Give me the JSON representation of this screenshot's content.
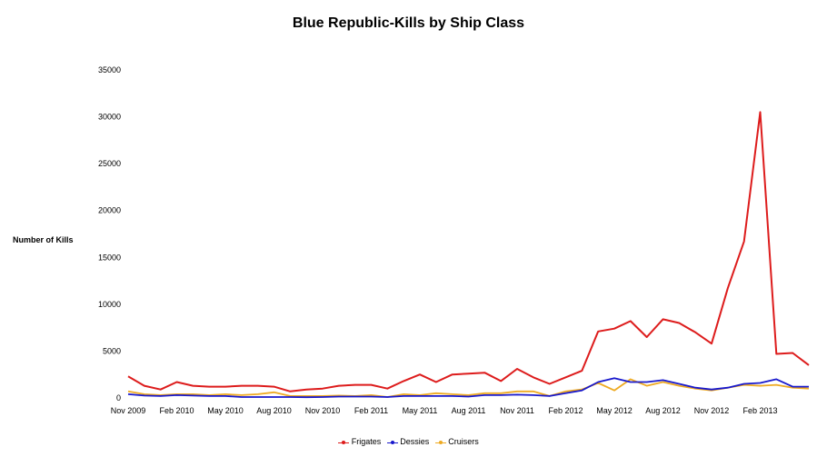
{
  "chart_data": {
    "type": "line",
    "title": "Blue Republic-Kills by Ship Class",
    "xlabel": "",
    "ylabel": "Number of Kills",
    "ylim": [
      0,
      35000
    ],
    "yticks": [
      0,
      5000,
      10000,
      15000,
      20000,
      25000,
      30000,
      35000
    ],
    "grid": false,
    "legend_position": "bottom",
    "x": [
      "Nov 2009",
      "Dec 2009",
      "Jan 2010",
      "Feb 2010",
      "Mar 2010",
      "Apr 2010",
      "May 2010",
      "Jun 2010",
      "Jul 2010",
      "Aug 2010",
      "Sep 2010",
      "Oct 2010",
      "Nov 2010",
      "Dec 2010",
      "Jan 2011",
      "Feb 2011",
      "Mar 2011",
      "Apr 2011",
      "May 2011",
      "Jun 2011",
      "Jul 2011",
      "Aug 2011",
      "Sep 2011",
      "Oct 2011",
      "Nov 2011",
      "Dec 2011",
      "Jan 2012",
      "Feb 2012",
      "Mar 2012",
      "Apr 2012",
      "May 2012",
      "Jun 2012",
      "Jul 2012",
      "Aug 2012",
      "Sep 2012",
      "Oct 2012",
      "Nov 2012",
      "Dec 2012",
      "Jan 2013",
      "Feb 2013",
      "Mar 2013",
      "Apr 2013",
      "May 2013"
    ],
    "xtick_labels": [
      "Nov 2009",
      "Feb 2010",
      "May 2010",
      "Aug 2010",
      "Nov 2010",
      "Feb 2011",
      "May 2011",
      "Aug 2011",
      "Nov 2011",
      "Feb 2012",
      "May 2012",
      "Aug 2012",
      "Nov 2012",
      "Feb 2013"
    ],
    "series": [
      {
        "name": "Frigates",
        "color": "#dd1c1c",
        "values": [
          2300,
          1300,
          900,
          1700,
          1300,
          1200,
          1200,
          1300,
          1300,
          1200,
          700,
          900,
          1000,
          1300,
          1400,
          1400,
          1000,
          1800,
          2500,
          1700,
          2500,
          2600,
          2700,
          1800,
          3100,
          2200,
          1500,
          2200,
          2900,
          7100,
          7400,
          8200,
          6500,
          8400,
          8000,
          7000,
          5800,
          11700,
          16700,
          30500,
          4700,
          4800,
          3500
        ]
      },
      {
        "name": "Dessies",
        "color": "#1818cc",
        "values": [
          400,
          250,
          200,
          300,
          250,
          200,
          200,
          100,
          100,
          100,
          100,
          80,
          100,
          150,
          150,
          150,
          100,
          200,
          200,
          200,
          200,
          150,
          300,
          300,
          350,
          300,
          200,
          500,
          800,
          1700,
          2100,
          1700,
          1700,
          1900,
          1500,
          1100,
          900,
          1100,
          1500,
          1600,
          2000,
          1200,
          1200
        ]
      },
      {
        "name": "Cruisers",
        "color": "#eeaa22",
        "values": [
          700,
          400,
          300,
          400,
          400,
          300,
          400,
          300,
          400,
          600,
          200,
          200,
          200,
          250,
          200,
          300,
          100,
          400,
          300,
          500,
          400,
          300,
          500,
          500,
          700,
          700,
          200,
          700,
          900,
          1600,
          800,
          2000,
          1300,
          1700,
          1300,
          1000,
          800,
          1100,
          1400,
          1300,
          1400,
          1100,
          1000
        ]
      }
    ]
  }
}
